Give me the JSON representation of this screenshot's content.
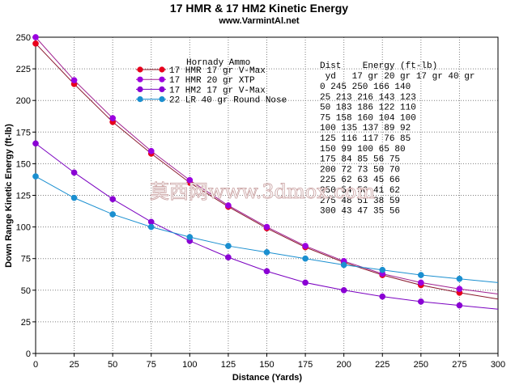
{
  "chart_data": {
    "type": "line",
    "title": "17 HMR & 17 HM2 Kinetic Energy",
    "subtitle": "www.VarmintAl.net",
    "xlabel": "Distance (Yards)",
    "ylabel": "Down Range Kinetic Energy (ft-lb)",
    "xlim": [
      0,
      300
    ],
    "ylim": [
      0,
      250
    ],
    "xticks": [
      "0",
      "25",
      "50",
      "75",
      "100",
      "125",
      "150",
      "175",
      "200",
      "225",
      "250",
      "275",
      "300"
    ],
    "yticks": [
      "0",
      "25",
      "50",
      "75",
      "100",
      "125",
      "150",
      "175",
      "200",
      "225",
      "250"
    ],
    "grid": true,
    "legend_title": "Hornady Ammo",
    "legend_placement": "top-center",
    "x": [
      0,
      25,
      50,
      75,
      100,
      125,
      150,
      175,
      200,
      225,
      250,
      275,
      300
    ],
    "series": [
      {
        "name": "17 HMR 17 gr V-Max",
        "color": "#e8001c",
        "line_color": "#8b1a2e",
        "values": [
          245,
          213,
          183,
          158,
          135,
          116,
          99,
          84,
          72,
          62,
          54,
          48,
          43
        ]
      },
      {
        "name": "17 HMR 20 gr XTP",
        "color": "#9b00e0",
        "line_color": "#a02090",
        "values": [
          250,
          216,
          186,
          160,
          137,
          117,
          100,
          85,
          73,
          63,
          56,
          51,
          47
        ]
      },
      {
        "name": "17 HM2 17 gr V-Max",
        "color": "#8a00d4",
        "line_color": "#7a00c0",
        "values": [
          166,
          143,
          122,
          104,
          89,
          76,
          65,
          56,
          50,
          45,
          41,
          38,
          35
        ]
      },
      {
        "name": "22 LR  40 gr Round Nose",
        "color": "#1a8fd0",
        "line_color": "#1a8fd0",
        "values": [
          140,
          123,
          110,
          100,
          92,
          85,
          80,
          75,
          70,
          66,
          62,
          59,
          56
        ]
      }
    ],
    "table": {
      "header1": "Dist    Energy (ft-lb)",
      "header2": " yd   17 gr 20 gr 17 gr 40 gr",
      "rows": [
        "  0   245   250   166   140",
        " 25   213   216   143   123",
        " 50   183   186   122   110",
        " 75   158   160   104   100",
        "100   135   137    89    92",
        "125   116   117    76    85",
        "150    99   100    65    80",
        "175    84    85    56    75",
        "200    72    73    50    70",
        "225    62    63    45    66",
        "250    54    56    41    62",
        "275    48    51    38    59",
        "300    43    47    35    56"
      ]
    },
    "watermark": "莫西网www.3dmox.com"
  }
}
